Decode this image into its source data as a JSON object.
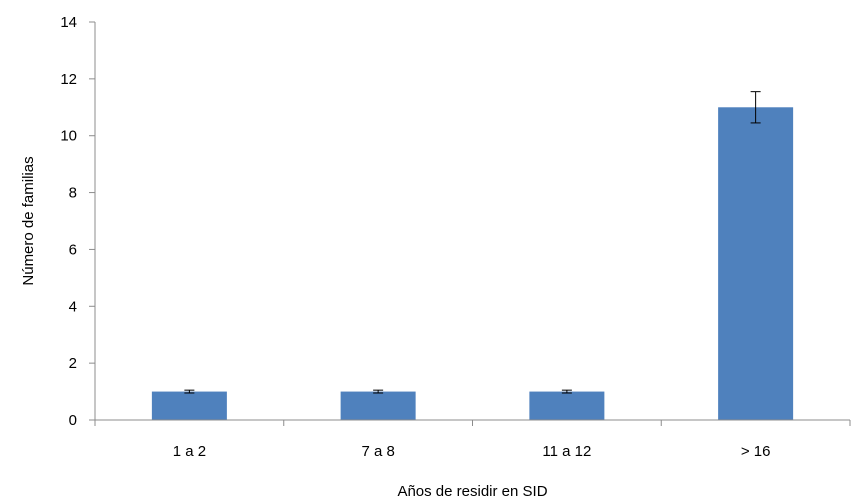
{
  "chart_data": {
    "type": "bar",
    "title": "",
    "xlabel": "Años de residir en SID",
    "ylabel": "Número de familias",
    "categories": [
      "1 a 2",
      "7 a 8",
      "11 a 12",
      "> 16"
    ],
    "values": [
      1,
      1,
      1,
      11
    ],
    "error": [
      0.05,
      0.05,
      0.05,
      0.55
    ],
    "ylim": [
      0,
      14
    ],
    "yticks": [
      0,
      2,
      4,
      6,
      8,
      10,
      12,
      14
    ],
    "grid": false,
    "legend": "none",
    "bar_color": "#4f81bd",
    "error_color": "#000000"
  }
}
